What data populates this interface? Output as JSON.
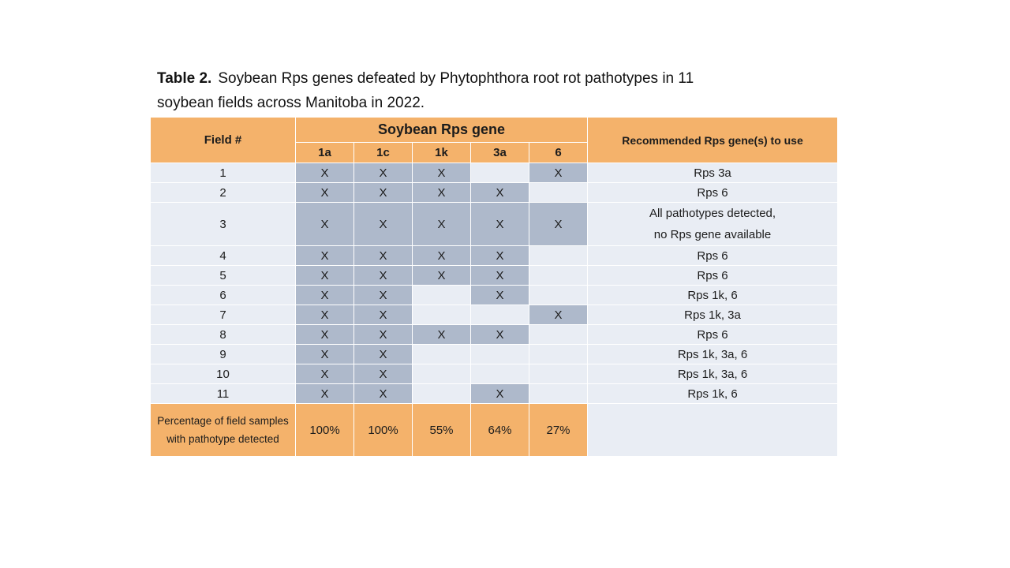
{
  "title": {
    "bold": "Table 2.",
    "line1_rest": "Soybean Rps genes defeated by Phytophthora root rot pathotypes in 11",
    "line2": "soybean fields across Manitoba in 2022."
  },
  "table": {
    "group_header": "Soybean Rps gene",
    "field_header": "Field #",
    "recommended_header": "Recommended Rps gene(s) to use",
    "gene_columns": [
      "1a",
      "1c",
      "1k",
      "3a",
      "6"
    ],
    "mark_symbol": "X",
    "rows": [
      {
        "field": "1",
        "marks": [
          true,
          true,
          true,
          false,
          true
        ],
        "recommended": [
          "Rps 3a"
        ]
      },
      {
        "field": "2",
        "marks": [
          true,
          true,
          true,
          true,
          false
        ],
        "recommended": [
          "Rps 6"
        ]
      },
      {
        "field": "3",
        "marks": [
          true,
          true,
          true,
          true,
          true
        ],
        "recommended": [
          "All pathotypes detected,",
          "no Rps gene available"
        ],
        "tall": true
      },
      {
        "field": "4",
        "marks": [
          true,
          true,
          true,
          true,
          false
        ],
        "recommended": [
          "Rps 6"
        ]
      },
      {
        "field": "5",
        "marks": [
          true,
          true,
          true,
          true,
          false
        ],
        "recommended": [
          "Rps 6"
        ]
      },
      {
        "field": "6",
        "marks": [
          true,
          true,
          false,
          true,
          false
        ],
        "recommended": [
          "Rps 1k, 6"
        ]
      },
      {
        "field": "7",
        "marks": [
          true,
          true,
          false,
          false,
          true
        ],
        "recommended": [
          "Rps 1k, 3a"
        ]
      },
      {
        "field": "8",
        "marks": [
          true,
          true,
          true,
          true,
          false
        ],
        "recommended": [
          "Rps 6"
        ]
      },
      {
        "field": "9",
        "marks": [
          true,
          true,
          false,
          false,
          false
        ],
        "recommended": [
          "Rps 1k, 3a, 6"
        ]
      },
      {
        "field": "10",
        "marks": [
          true,
          true,
          false,
          false,
          false
        ],
        "recommended": [
          "Rps 1k, 3a, 6"
        ]
      },
      {
        "field": "11",
        "marks": [
          true,
          true,
          false,
          true,
          false
        ],
        "recommended": [
          "Rps 1k, 6"
        ]
      }
    ],
    "footer": {
      "label": "Percentage of field samples with pathotype detected",
      "values": [
        "100%",
        "100%",
        "55%",
        "64%",
        "27%"
      ]
    },
    "colors": {
      "header_orange": "#F4B26B",
      "mark_cell_blue_gray": "#AEB9CB",
      "row_light": "#E9EDF4",
      "header_underline": "#111111",
      "footer_topline": "#414141"
    }
  }
}
